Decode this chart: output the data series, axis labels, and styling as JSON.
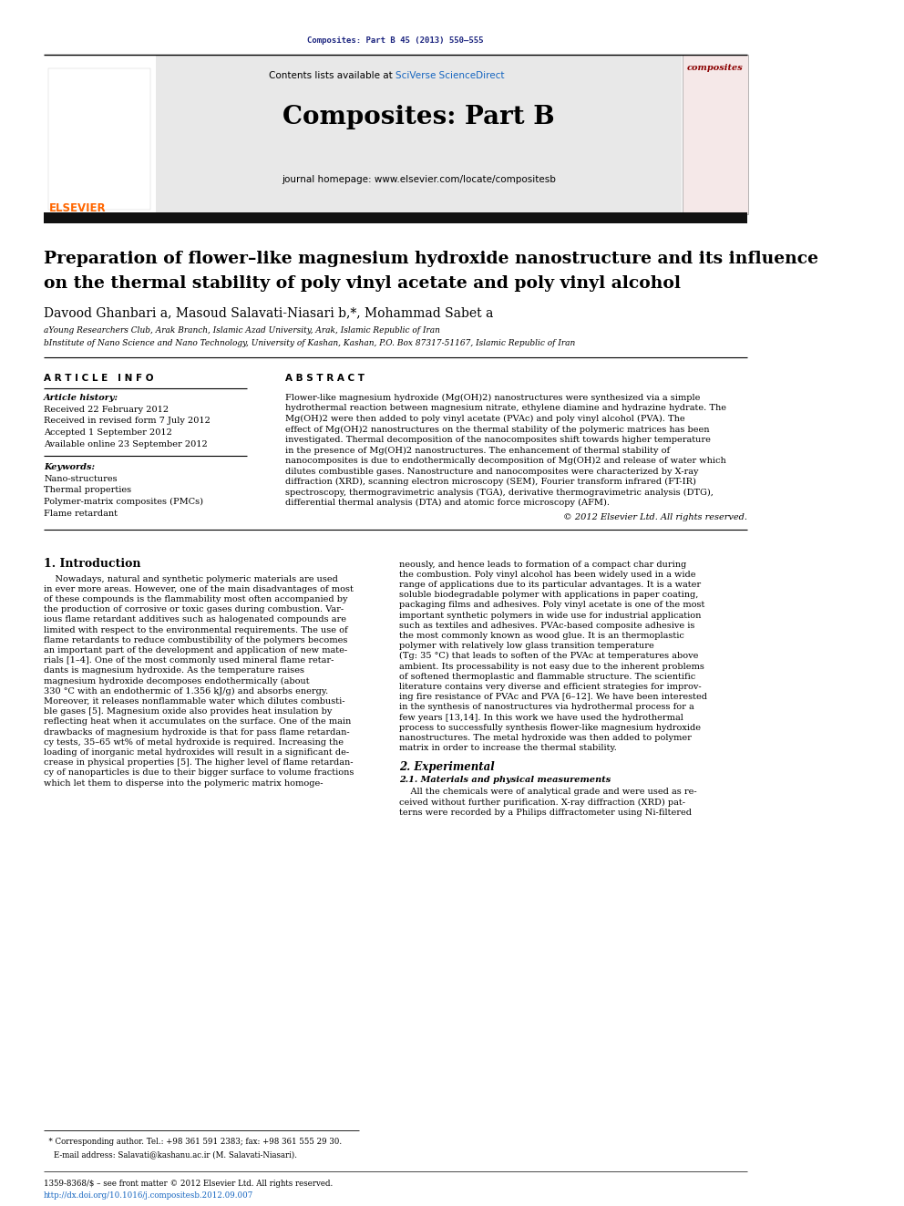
{
  "page_width": 9.92,
  "page_height": 13.23,
  "bg_color": "#ffffff",
  "top_journal_ref": "Composites: Part B 45 (2013) 550–555",
  "top_journal_ref_color": "#1a237e",
  "header_bg": "#e8e8e8",
  "header_text1": "Contents lists available at ",
  "header_sciverse": "SciVerse ScienceDirect",
  "header_sciverse_color": "#1565c0",
  "header_journal": "Composites: Part B",
  "header_journal_homepage": "journal homepage: www.elsevier.com/locate/compositesb",
  "thick_bar_color": "#111111",
  "article_title_line1": "Preparation of flower–like magnesium hydroxide nanostructure and its influence",
  "article_title_line2": "on the thermal stability of poly vinyl acetate and poly vinyl alcohol",
  "authors": "Davood Ghanbari a, Masoud Salavati-Niasari b,*, Mohammad Sabet a",
  "affil_a": "aYoung Researchers Club, Arak Branch, Islamic Azad University, Arak, Islamic Republic of Iran",
  "affil_b": "bInstitute of Nano Science and Nano Technology, University of Kashan, Kashan, P.O. Box 87317-51167, Islamic Republic of Iran",
  "section_article_info": "A R T I C L E   I N F O",
  "section_abstract": "A B S T R A C T",
  "article_history_label": "Article history:",
  "article_history": [
    "Received 22 February 2012",
    "Received in revised form 7 July 2012",
    "Accepted 1 September 2012",
    "Available online 23 September 2012"
  ],
  "keywords_label": "Keywords:",
  "keywords": [
    "Nano-structures",
    "Thermal properties",
    "Polymer-matrix composites (PMCs)",
    "Flame retardant"
  ],
  "abstract_text": "Flower-like magnesium hydroxide (Mg(OH)2) nanostructures were synthesized via a simple hydrothermal reaction between magnesium nitrate, ethylene diamine and hydrazine hydrate. The Mg(OH)2 were then added to poly vinyl acetate (PVAc) and poly vinyl alcohol (PVA). The effect of Mg(OH)2 nanostructures on the thermal stability of the polymeric matrices has been investigated. Thermal decomposition of the nanocomposites shift towards higher temperature in the presence of Mg(OH)2 nanostructures. The enhancement of thermal stability of nanocomposites is due to endothermically decomposition of Mg(OH)2 and release of water which dilutes combustible gases. Nanostructure and nanocomposites were characterized by X-ray diffraction (XRD), scanning electron microscopy (SEM), Fourier transform infrared (FT-IR) spectroscopy, thermogravimetric analysis (TGA), derivative thermogravimetric analysis (DTG), differential thermal analysis (DTA) and atomic force microscopy (AFM).",
  "abstract_copyright": "© 2012 Elsevier Ltd. All rights reserved.",
  "intro_heading": "1. Introduction",
  "intro_col1_lines": [
    "    Nowadays, natural and synthetic polymeric materials are used",
    "in ever more areas. However, one of the main disadvantages of most",
    "of these compounds is the flammability most often accompanied by",
    "the production of corrosive or toxic gases during combustion. Var-",
    "ious flame retardant additives such as halogenated compounds are",
    "limited with respect to the environmental requirements. The use of",
    "flame retardants to reduce combustibility of the polymers becomes",
    "an important part of the development and application of new mate-",
    "rials [1–4]. One of the most commonly used mineral flame retar-",
    "dants is magnesium hydroxide. As the temperature raises",
    "magnesium hydroxide decomposes endothermically (about",
    "330 °C with an endothermic of 1.356 kJ/g) and absorbs energy.",
    "Moreover, it releases nonflammable water which dilutes combusti-",
    "ble gases [5]. Magnesium oxide also provides heat insulation by",
    "reflecting heat when it accumulates on the surface. One of the main",
    "drawbacks of magnesium hydroxide is that for pass flame retardan-",
    "cy tests, 35–65 wt% of metal hydroxide is required. Increasing the",
    "loading of inorganic metal hydroxides will result in a significant de-",
    "crease in physical properties [5]. The higher level of flame retardan-",
    "cy of nanoparticles is due to their bigger surface to volume fractions",
    "which let them to disperse into the polymeric matrix homoge-"
  ],
  "intro_col2_lines": [
    "neously, and hence leads to formation of a compact char during",
    "the combustion. Poly vinyl alcohol has been widely used in a wide",
    "range of applications due to its particular advantages. It is a water",
    "soluble biodegradable polymer with applications in paper coating,",
    "packaging films and adhesives. Poly vinyl acetate is one of the most",
    "important synthetic polymers in wide use for industrial application",
    "such as textiles and adhesives. PVAc-based composite adhesive is",
    "the most commonly known as wood glue. It is an thermoplastic",
    "polymer with relatively low glass transition temperature",
    "(Tg: 35 °C) that leads to soften of the PVAc at temperatures above",
    "ambient. Its processability is not easy due to the inherent problems",
    "of softened thermoplastic and flammable structure. The scientific",
    "literature contains very diverse and efficient strategies for improv-",
    "ing fire resistance of PVAc and PVA [6–12]. We have been interested",
    "in the synthesis of nanostructures via hydrothermal process for a",
    "few years [13,14]. In this work we have used the hydrothermal",
    "process to successfully synthesis flower-like magnesium hydroxide",
    "nanostructures. The metal hydroxide was then added to polymer",
    "matrix in order to increase the thermal stability."
  ],
  "section2_heading": "2. Experimental",
  "section21_heading": "2.1. Materials and physical measurements",
  "section21_col2_lines": [
    "    All the chemicals were of analytical grade and were used as re-",
    "ceived without further purification. X-ray diffraction (XRD) pat-",
    "terns were recorded by a Philips diffractometer using Ni-filtered"
  ],
  "footnote_star": "  * Corresponding author. Tel.: +98 361 591 2383; fax: +98 361 555 29 30.",
  "footnote_email": "    E-mail address: Salavati@kashanu.ac.ir (M. Salavati-Niasari).",
  "footnote_issn": "1359-8368/$ – see front matter © 2012 Elsevier Ltd. All rights reserved.",
  "footnote_doi": "http://dx.doi.org/10.1016/j.compositesb.2012.09.007",
  "elsevier_color": "#FF6600",
  "sciverse_link_color": "#1565c0"
}
